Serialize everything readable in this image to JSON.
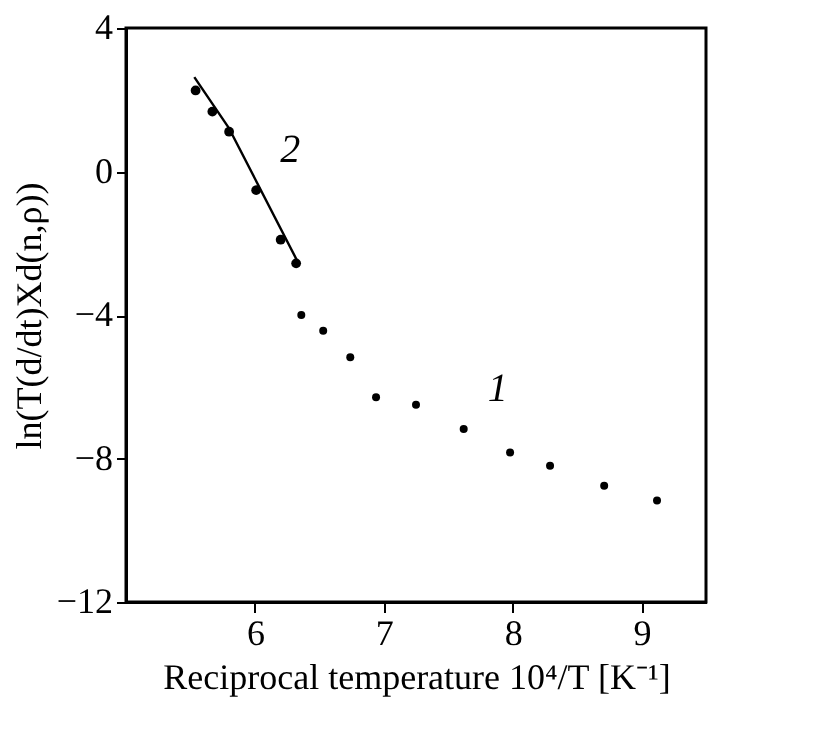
{
  "chart_data": {
    "type": "scatter",
    "xlabel": "Reciprocal temperature 10⁴/T [K⁻¹]",
    "ylabel": "ln(T(d/dt)Xd(n,ρ))",
    "xlim": [
      5,
      9.5
    ],
    "xticks": [
      6,
      7,
      8,
      9
    ],
    "ylim": [
      -12,
      4
    ],
    "yticks": [
      -12,
      -8,
      -4,
      0,
      4
    ],
    "grid": false,
    "legend": false,
    "marker": "circle",
    "series": [
      {
        "name": "1",
        "color": "#000000",
        "x": [
          6.36,
          6.53,
          6.74,
          6.94,
          7.25,
          7.62,
          7.98,
          8.29,
          8.71,
          9.12
        ],
        "values": [
          -4.0,
          -4.44,
          -5.18,
          -6.29,
          -6.5,
          -7.18,
          -7.83,
          -8.2,
          -8.76,
          -9.17
        ]
      },
      {
        "name": "2",
        "color": "#000000",
        "x": [
          5.54,
          5.67,
          5.8,
          6.01,
          6.2,
          6.32
        ],
        "values": [
          2.26,
          1.67,
          1.11,
          -0.52,
          -1.9,
          -2.56
        ]
      },
      {
        "type": "line",
        "color": "#000000",
        "marker": "none",
        "line_style": "solid",
        "x": [
          5.53,
          5.8,
          6.33
        ],
        "values": [
          2.63,
          1.2,
          -2.5
        ]
      }
    ]
  }
}
